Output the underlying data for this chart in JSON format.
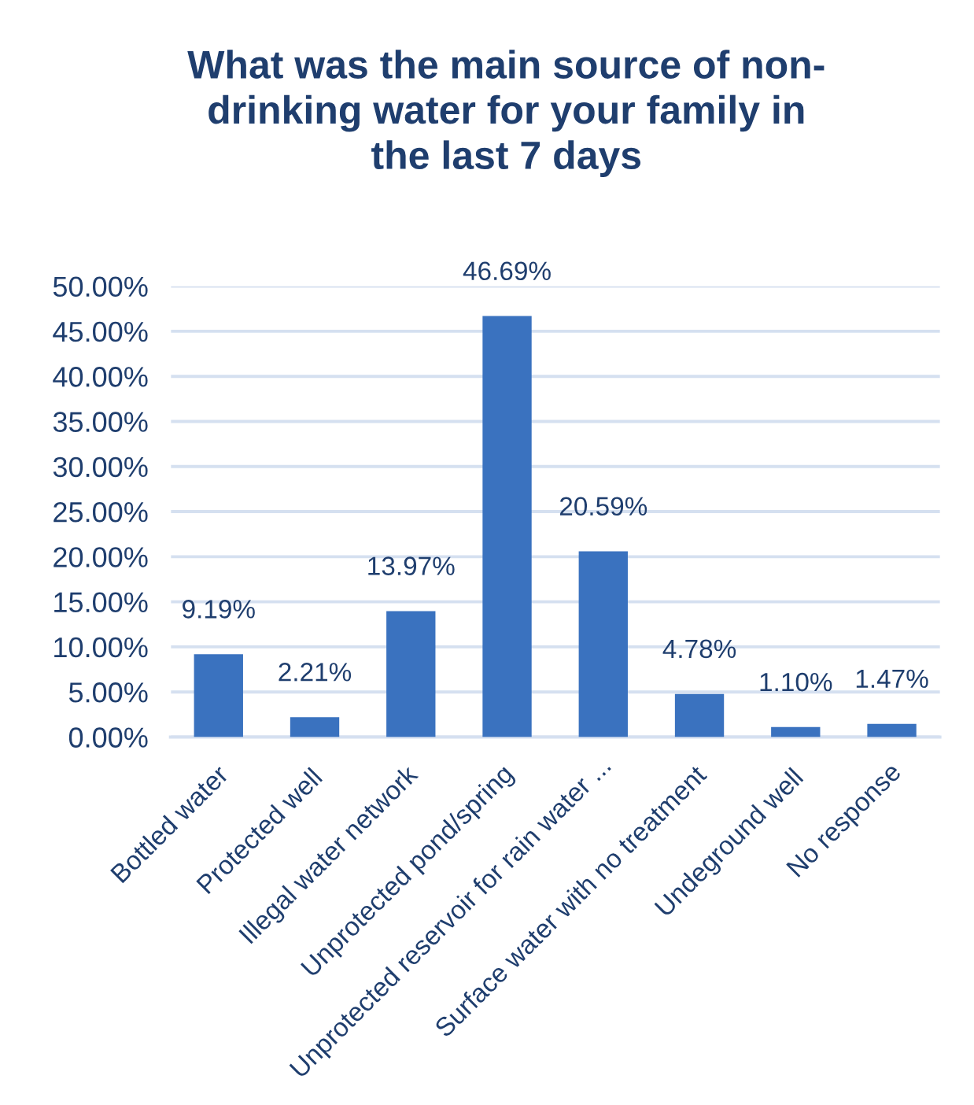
{
  "chart_data": {
    "type": "bar",
    "title": "What was the main source of non-drinking water for your family in the last 7 days",
    "categories": [
      "Bottled water",
      "Protected well",
      "Illegal water network",
      "Unprotected pond/spring",
      "Unprotected reservoir for rain water ...",
      "Surface water with no treatment",
      "Undeground well",
      "No response"
    ],
    "values": [
      9.19,
      2.21,
      13.97,
      46.69,
      20.59,
      4.78,
      1.1,
      1.47
    ],
    "value_labels": [
      "9.19%",
      "2.21%",
      "13.97%",
      "46.69%",
      "20.59%",
      "4.78%",
      "1.10%",
      "1.47%"
    ],
    "color": "#3a72bf",
    "ylim": [
      0,
      50
    ],
    "yticks": [
      {
        "value": 0,
        "label": "0.00%"
      },
      {
        "value": 5,
        "label": "5.00%"
      },
      {
        "value": 10,
        "label": "10.00%"
      },
      {
        "value": 15,
        "label": "15.00%"
      },
      {
        "value": 20,
        "label": "20.00%"
      },
      {
        "value": 25,
        "label": "25.00%"
      },
      {
        "value": 30,
        "label": "30.00%"
      },
      {
        "value": 35,
        "label": "35.00%"
      },
      {
        "value": 40,
        "label": "40.00%"
      },
      {
        "value": 45,
        "label": "45.00%"
      },
      {
        "value": 50,
        "label": "50.00%"
      }
    ],
    "grid": "y",
    "legend": false
  }
}
